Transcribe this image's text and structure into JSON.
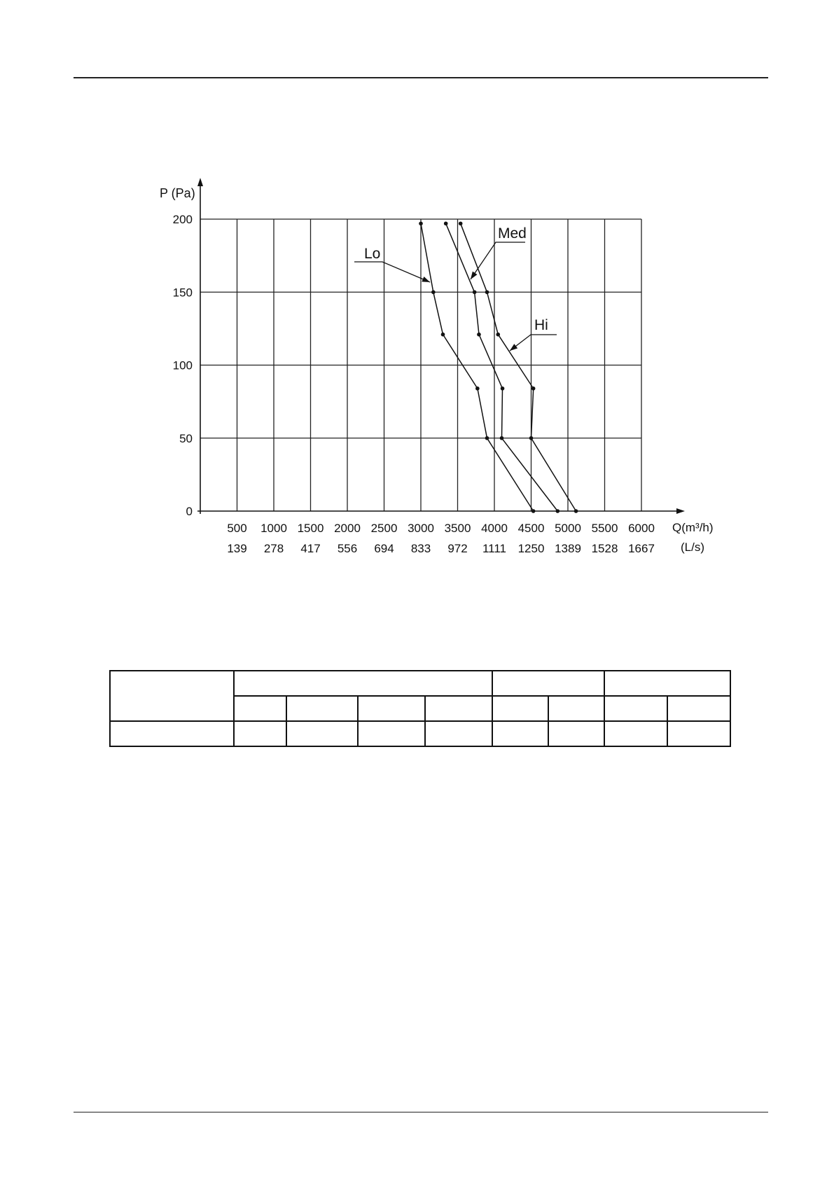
{
  "chart_data": {
    "type": "line",
    "ylabel": "P (Pa)",
    "xlabel": "Q(m³/h)",
    "xlabel_secondary": "(L/s)",
    "xlim": [
      0,
      6000
    ],
    "ylim": [
      0,
      200
    ],
    "grid": true,
    "x_ticks": [
      500,
      1000,
      1500,
      2000,
      2500,
      3000,
      3500,
      4000,
      4500,
      5000,
      5500,
      6000
    ],
    "x_tick_labels": [
      "500",
      "1000",
      "1500",
      "2000",
      "2500",
      "3000",
      "3500",
      "4000",
      "4500",
      "5000",
      "5500",
      "6000"
    ],
    "x_tick_labels_secondary": [
      "139",
      "278",
      "417",
      "556",
      "694",
      "833",
      "972",
      "1111",
      "1250",
      "1389",
      "1528",
      "1667"
    ],
    "y_ticks": [
      0,
      50,
      100,
      150,
      200
    ],
    "y_tick_labels": [
      "0",
      "50",
      "100",
      "150",
      "200"
    ],
    "series": [
      {
        "name": "Lo",
        "points": [
          [
            3000,
            197
          ],
          [
            3170,
            150
          ],
          [
            3300,
            121
          ],
          [
            3770,
            84
          ],
          [
            3900,
            50
          ],
          [
            4530,
            0
          ]
        ]
      },
      {
        "name": "Med",
        "points": [
          [
            3340,
            197
          ],
          [
            3730,
            150
          ],
          [
            3790,
            121
          ],
          [
            4110,
            84
          ],
          [
            4100,
            50
          ],
          [
            4860,
            0
          ]
        ]
      },
      {
        "name": "Hi",
        "points": [
          [
            3540,
            197
          ],
          [
            3900,
            150
          ],
          [
            4050,
            121
          ],
          [
            4530,
            84
          ],
          [
            4500,
            50
          ],
          [
            5110,
            0
          ]
        ]
      }
    ]
  }
}
